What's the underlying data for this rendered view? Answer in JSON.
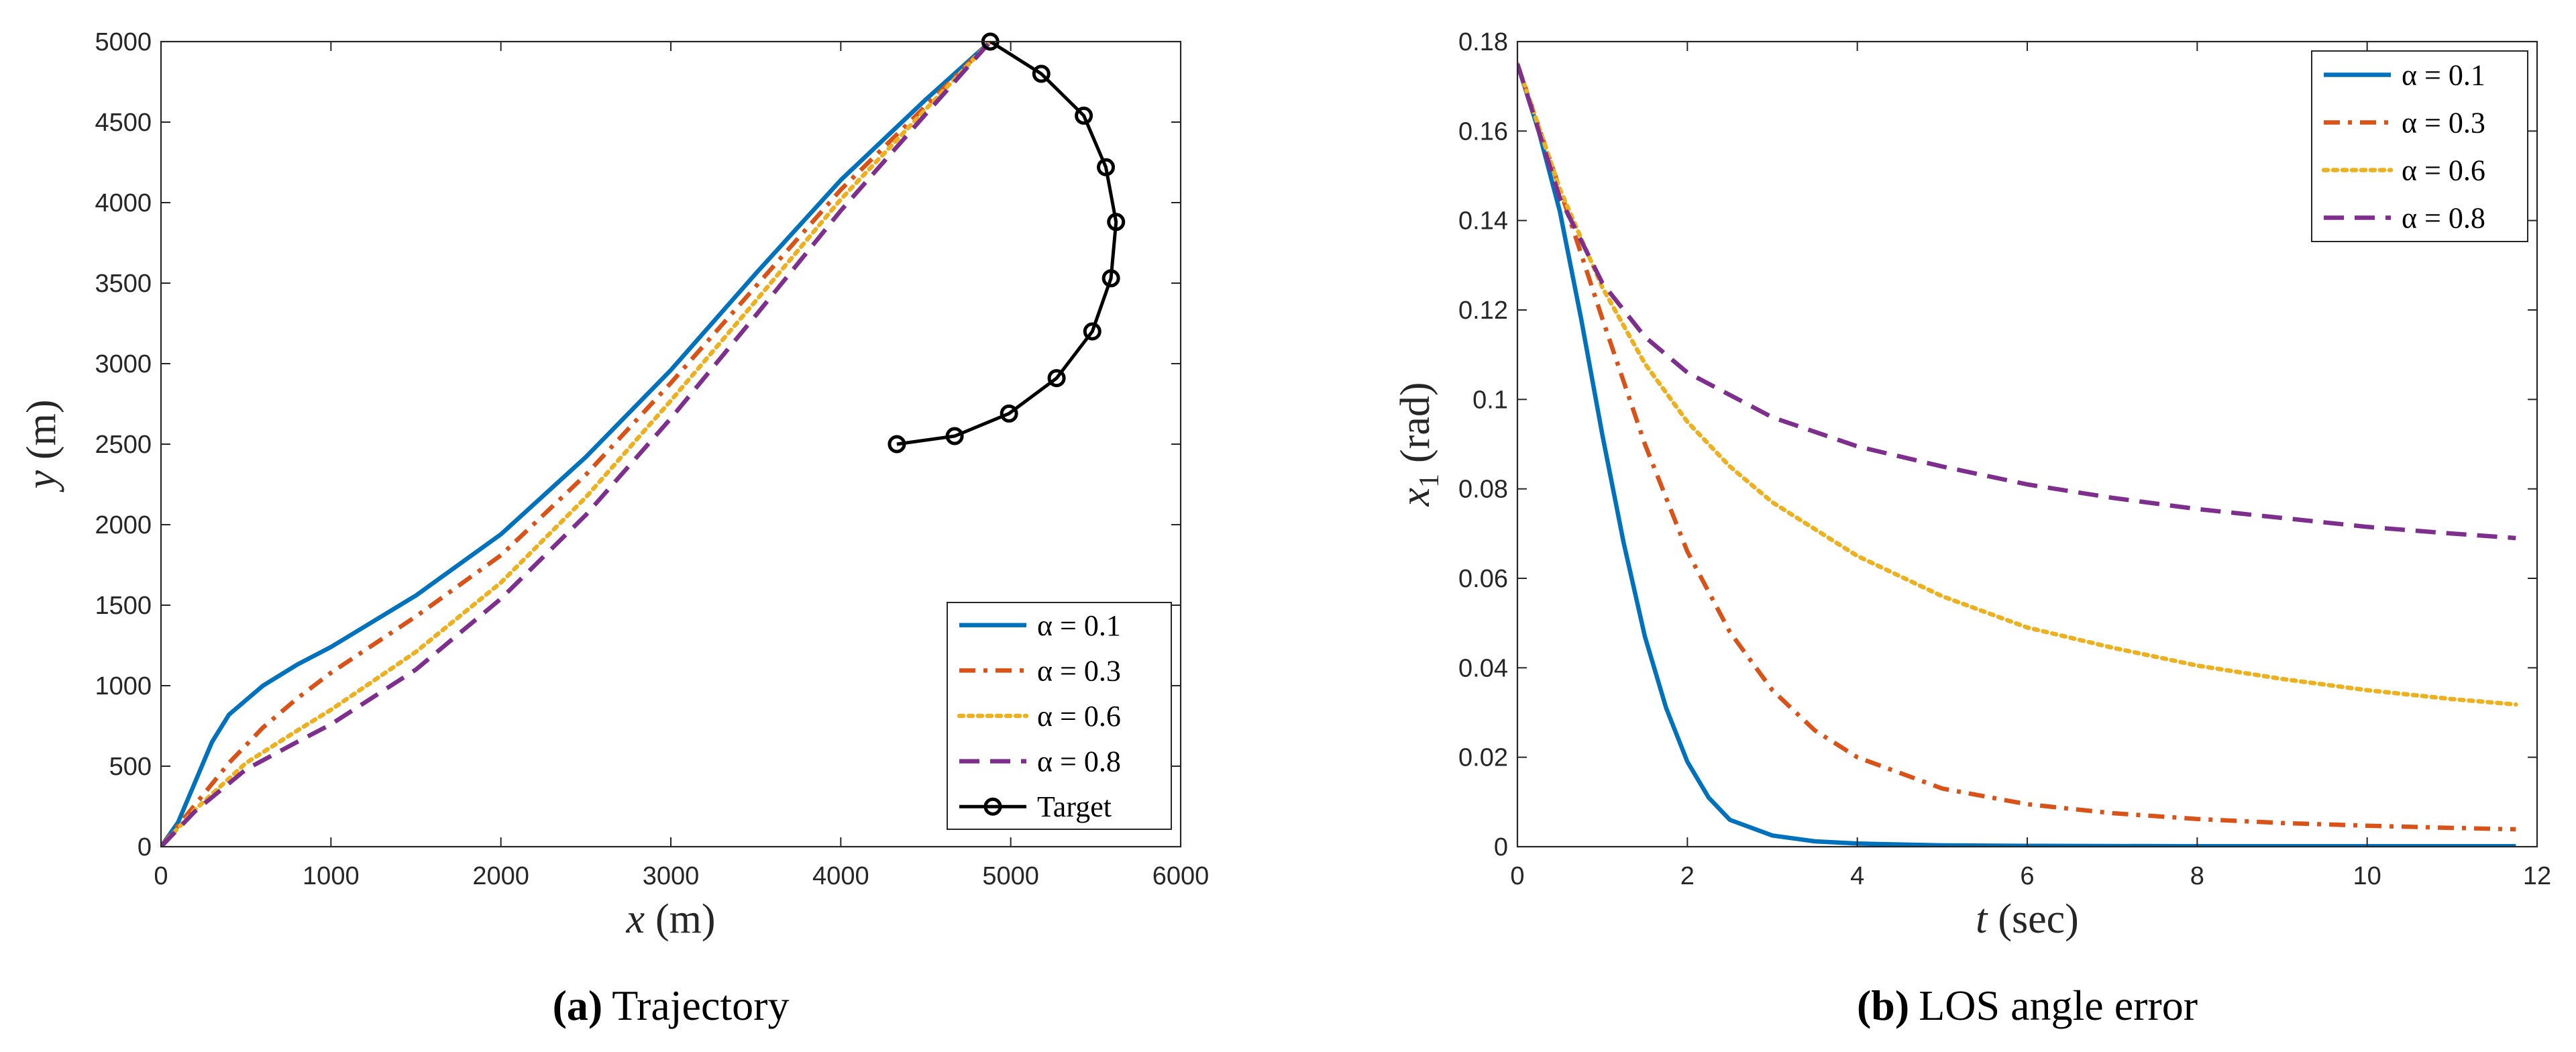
{
  "chart_data": [
    {
      "type": "line",
      "panel": "a",
      "caption_label": "(a)",
      "caption_text": "Trajectory",
      "xlabel_var": "x",
      "xlabel_unit": "(m)",
      "ylabel_var": "y",
      "ylabel_unit": "(m)",
      "xlim": [
        0,
        6000
      ],
      "ylim": [
        0,
        5000
      ],
      "xticks": [
        0,
        1000,
        2000,
        3000,
        4000,
        5000,
        6000
      ],
      "yticks": [
        0,
        500,
        1000,
        1500,
        2000,
        2500,
        3000,
        3500,
        4000,
        4500,
        5000
      ],
      "legend_position": "bottom-right",
      "series": [
        {
          "name": "α = 0.1",
          "color": "#0072BD",
          "style": "solid",
          "x": [
            0,
            100,
            200,
            300,
            400,
            600,
            800,
            1000,
            1500,
            2000,
            2500,
            3000,
            3500,
            4000,
            4500,
            4880
          ],
          "y": [
            0,
            150,
            400,
            650,
            820,
            1000,
            1130,
            1240,
            1560,
            1940,
            2420,
            2960,
            3560,
            4140,
            4640,
            5000
          ]
        },
        {
          "name": "α = 0.3",
          "color": "#D95319",
          "style": "dashdot",
          "x": [
            0,
            200,
            400,
            600,
            800,
            1000,
            1500,
            2000,
            2500,
            3000,
            3500,
            4000,
            4500,
            4880
          ],
          "y": [
            0,
            260,
            520,
            740,
            920,
            1080,
            1430,
            1810,
            2310,
            2880,
            3480,
            4080,
            4600,
            5000
          ]
        },
        {
          "name": "α = 0.6",
          "color": "#EDB120",
          "style": "dotted",
          "x": [
            0,
            200,
            500,
            800,
            1000,
            1500,
            2000,
            2500,
            3000,
            3500,
            4000,
            4500,
            4880
          ],
          "y": [
            0,
            230,
            520,
            720,
            850,
            1210,
            1640,
            2170,
            2770,
            3390,
            4020,
            4580,
            5000
          ]
        },
        {
          "name": "α = 0.8",
          "color": "#7E2F8E",
          "style": "dashed",
          "x": [
            0,
            200,
            500,
            800,
            1000,
            1500,
            2000,
            2500,
            3000,
            3500,
            4000,
            4500,
            4880
          ],
          "y": [
            0,
            220,
            480,
            650,
            760,
            1100,
            1540,
            2060,
            2660,
            3300,
            3950,
            4550,
            5000
          ]
        },
        {
          "name": "Target",
          "color": "#000000",
          "style": "solid-circle-markers",
          "x": [
            4880,
            5180,
            5430,
            5560,
            5620,
            5590,
            5480,
            5270,
            4990,
            4670,
            4330
          ],
          "y": [
            5000,
            4800,
            4540,
            4220,
            3880,
            3530,
            3200,
            2910,
            2690,
            2550,
            2500
          ]
        }
      ]
    },
    {
      "type": "line",
      "panel": "b",
      "caption_label": "(b)",
      "caption_text": "LOS angle error",
      "xlabel_var": "t",
      "xlabel_unit": "(sec)",
      "ylabel_var": "x",
      "ylabel_sub": "1",
      "ylabel_unit": "(rad)",
      "xlim": [
        0,
        12
      ],
      "ylim": [
        0,
        0.18
      ],
      "xticks": [
        0,
        2,
        4,
        6,
        8,
        10,
        12
      ],
      "yticks": [
        0,
        0.02,
        0.04,
        0.06,
        0.08,
        0.1,
        0.12,
        0.14,
        0.16,
        0.18
      ],
      "legend_position": "top-right",
      "series": [
        {
          "name": "α = 0.1",
          "color": "#0072BD",
          "style": "solid",
          "x": [
            0,
            0.25,
            0.5,
            0.75,
            1,
            1.25,
            1.5,
            1.75,
            2,
            2.25,
            2.5,
            3,
            3.5,
            4,
            5,
            6,
            8,
            10,
            11.75
          ],
          "y": [
            0.175,
            0.16,
            0.142,
            0.118,
            0.092,
            0.068,
            0.047,
            0.031,
            0.019,
            0.011,
            0.006,
            0.0025,
            0.0012,
            0.0007,
            0.0003,
            0.0002,
            0.0001,
            0.0001,
            0.0001
          ]
        },
        {
          "name": "α = 0.3",
          "color": "#D95319",
          "style": "dashdot",
          "x": [
            0,
            0.5,
            1,
            1.5,
            2,
            2.5,
            3,
            3.5,
            4,
            5,
            6,
            7,
            8,
            9,
            10,
            11,
            11.75
          ],
          "y": [
            0.175,
            0.147,
            0.118,
            0.09,
            0.066,
            0.048,
            0.035,
            0.026,
            0.02,
            0.013,
            0.0095,
            0.0075,
            0.0062,
            0.0053,
            0.0047,
            0.0042,
            0.0039
          ]
        },
        {
          "name": "α = 0.6",
          "color": "#EDB120",
          "style": "dotted",
          "x": [
            0,
            0.5,
            1,
            1.5,
            2,
            2.5,
            3,
            4,
            5,
            6,
            7,
            8,
            9,
            10,
            11,
            11.75
          ],
          "y": [
            0.175,
            0.147,
            0.125,
            0.108,
            0.095,
            0.085,
            0.077,
            0.065,
            0.056,
            0.049,
            0.0445,
            0.0405,
            0.0375,
            0.035,
            0.033,
            0.0318
          ]
        },
        {
          "name": "α = 0.8",
          "color": "#7E2F8E",
          "style": "dashed",
          "x": [
            0,
            0.5,
            1,
            1.5,
            2,
            3,
            4,
            5,
            6,
            7,
            8,
            9,
            10,
            11,
            11.75
          ],
          "y": [
            0.175,
            0.145,
            0.126,
            0.114,
            0.106,
            0.096,
            0.0895,
            0.085,
            0.081,
            0.078,
            0.0755,
            0.0735,
            0.0715,
            0.07,
            0.069
          ]
        }
      ]
    }
  ]
}
